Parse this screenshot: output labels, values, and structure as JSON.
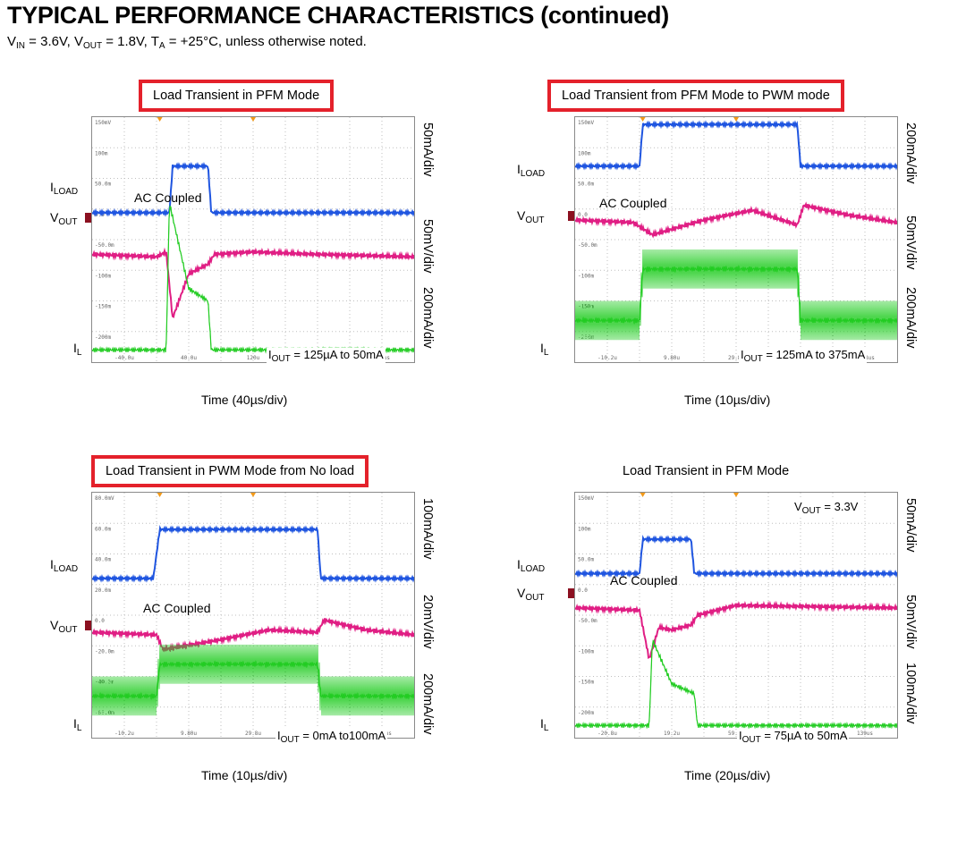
{
  "header": {
    "title": "TYPICAL PERFORMANCE CHARACTERISTICS (continued)",
    "conditions": {
      "vin_sym": "V",
      "vin_sub": "IN",
      "vin_val": " = 3.6V, ",
      "vout_sym": "V",
      "vout_sub": "OUT",
      "vout_val": " = 1.8V, ",
      "ta_sym": "T",
      "ta_sub": "A",
      "ta_val": " = +25°C, unless otherwise noted."
    }
  },
  "labels": {
    "iload_sym": "I",
    "iload_sub": "LOAD",
    "vout_sym": "V",
    "vout_sub": "OUT",
    "il_sym": "I",
    "il_sub": "L",
    "iout_sym": "I",
    "iout_sub": "OUT",
    "ac_coupled": "AC  Coupled"
  },
  "colors": {
    "iload": "#1f55e0",
    "vout": "#e01e84",
    "il": "#22cc22",
    "box": "#e4212b",
    "grid": "#bfbfbf"
  },
  "chart_data": [
    {
      "type": "line",
      "title": "Load Transient in PFM Mode",
      "boxed": true,
      "x_axis_label": "Time (40µs/div)",
      "x_tick_labels": [
        "-40.0u",
        "40.0u",
        "120u",
        "200u",
        "280us"
      ],
      "y_tick_labels": [
        "150mV",
        "100m",
        "50.0m",
        "0.0",
        "-50.0m",
        "-100m",
        "-150m",
        "-200m"
      ],
      "scales": [
        "50mA/div",
        "50mV/div",
        "200mA/div"
      ],
      "iout_value": " =  125µA  to  50mA",
      "series": [
        {
          "name": "ILOAD",
          "x": [
            0,
            0.24,
            0.25,
            0.36,
            0.37,
            1
          ],
          "y": [
            0.39,
            0.39,
            0.2,
            0.2,
            0.39,
            0.39
          ]
        },
        {
          "name": "VOUT",
          "x": [
            0,
            0.2,
            0.23,
            0.25,
            0.3,
            0.36,
            0.38,
            0.5,
            0.7,
            1
          ],
          "y": [
            0.56,
            0.57,
            0.55,
            0.82,
            0.64,
            0.6,
            0.56,
            0.55,
            0.56,
            0.57
          ]
        },
        {
          "name": "IL",
          "x": [
            0,
            0.23,
            0.24,
            0.3,
            0.36,
            0.37,
            1
          ],
          "y": [
            0.95,
            0.95,
            0.35,
            0.7,
            0.75,
            0.95,
            0.95
          ]
        }
      ]
    },
    {
      "type": "line",
      "title": "Load Transient from PFM Mode to PWM mode",
      "boxed": true,
      "x_axis_label": "Time (10µs/div)",
      "x_tick_labels": [
        "-10.2u",
        "9.80u",
        "29.8u",
        "49.8u",
        "69.8us"
      ],
      "y_tick_labels": [
        "150mV",
        "100m",
        "50.0m",
        "0.0",
        "-50.0m",
        "-100m",
        "-150m",
        "-200m"
      ],
      "scales": [
        "200mA/div",
        "50mV/div",
        "200mA/div"
      ],
      "iout_value": " =  125mA  to  375mA",
      "series": [
        {
          "name": "ILOAD",
          "x": [
            0,
            0.2,
            0.21,
            0.69,
            0.7,
            1
          ],
          "y": [
            0.2,
            0.2,
            0.03,
            0.03,
            0.2,
            0.2
          ]
        },
        {
          "name": "VOUT",
          "x": [
            0,
            0.18,
            0.24,
            0.4,
            0.55,
            0.69,
            0.71,
            0.85,
            1
          ],
          "y": [
            0.42,
            0.43,
            0.48,
            0.42,
            0.38,
            0.44,
            0.36,
            0.4,
            0.43
          ]
        },
        {
          "name": "IL",
          "x": [
            0,
            0.2,
            0.21,
            0.69,
            0.7,
            1
          ],
          "y": [
            0.83,
            0.83,
            0.62,
            0.62,
            0.83,
            0.83
          ]
        }
      ]
    },
    {
      "type": "line",
      "title": "Load Transient in PWM Mode from No load",
      "boxed": true,
      "x_axis_label": "Time (10µs/div)",
      "x_tick_labels": [
        "-10.2u",
        "9.80u",
        "29.8u",
        "49.8u",
        "69.8us"
      ],
      "y_tick_labels": [
        "80.0mV",
        "60.0m",
        "40.0m",
        "20.0m",
        "0.0",
        "-20.0m",
        "-40.0m",
        "-60.0m"
      ],
      "scales": [
        "100mA/div",
        "20mV/div",
        "200mA/div"
      ],
      "iout_value": " =  0mA  to100mA",
      "series": [
        {
          "name": "ILOAD",
          "x": [
            0,
            0.19,
            0.21,
            0.7,
            0.71,
            1
          ],
          "y": [
            0.35,
            0.35,
            0.15,
            0.15,
            0.35,
            0.35
          ]
        },
        {
          "name": "VOUT",
          "x": [
            0,
            0.2,
            0.22,
            0.4,
            0.55,
            0.7,
            0.72,
            0.85,
            1
          ],
          "y": [
            0.57,
            0.58,
            0.64,
            0.6,
            0.56,
            0.57,
            0.52,
            0.56,
            0.58
          ]
        },
        {
          "name": "IL",
          "x": [
            0,
            0.2,
            0.21,
            0.7,
            0.71,
            1
          ],
          "y": [
            0.83,
            0.83,
            0.7,
            0.7,
            0.83,
            0.83
          ]
        }
      ]
    },
    {
      "type": "line",
      "title": "Load Transient in PFM Mode",
      "boxed": false,
      "x_axis_label": "Time (20µs/div)",
      "x_tick_labels": [
        "-20.8u",
        "19.2u",
        "59.2u",
        "99.2u",
        "139us"
      ],
      "y_tick_labels": [
        "150mV",
        "100m",
        "50.0m",
        "0.0",
        "-50.0m",
        "-100m",
        "-150m",
        "-200m"
      ],
      "scales": [
        "50mA/div",
        "50mV/div",
        "100mA/div"
      ],
      "iout_value": " =  75µA  to  50mA",
      "vout_setting_value": " =  3.3V",
      "series": [
        {
          "name": "ILOAD",
          "x": [
            0,
            0.2,
            0.21,
            0.36,
            0.37,
            1
          ],
          "y": [
            0.33,
            0.33,
            0.19,
            0.19,
            0.33,
            0.33
          ]
        },
        {
          "name": "VOUT",
          "x": [
            0,
            0.2,
            0.23,
            0.26,
            0.3,
            0.36,
            0.38,
            0.5,
            1
          ],
          "y": [
            0.47,
            0.48,
            0.68,
            0.55,
            0.56,
            0.54,
            0.5,
            0.46,
            0.47
          ]
        },
        {
          "name": "IL",
          "x": [
            0,
            0.23,
            0.24,
            0.3,
            0.37,
            0.38,
            1
          ],
          "y": [
            0.95,
            0.95,
            0.6,
            0.78,
            0.82,
            0.95,
            0.95
          ]
        }
      ]
    }
  ]
}
